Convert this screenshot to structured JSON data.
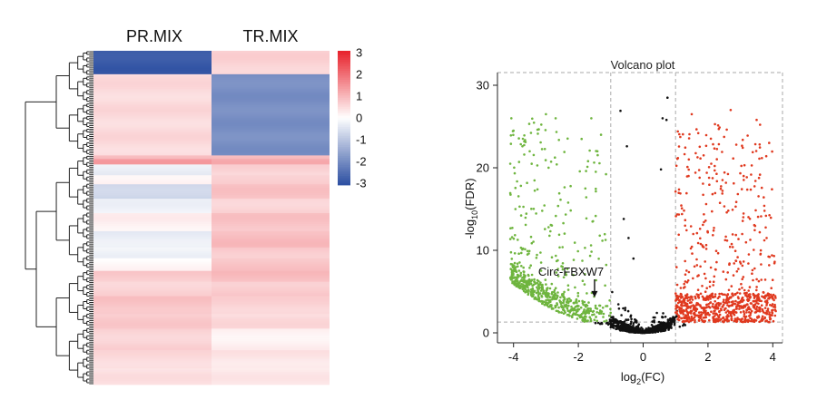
{
  "chart_data": [
    {
      "type": "heatmap",
      "columns": [
        "PR.MIX",
        "TR.MIX"
      ],
      "colorbar": {
        "min": -3,
        "max": 3,
        "ticks": [
          "3",
          "2",
          "1",
          "0",
          "-1",
          "-2",
          "-3"
        ],
        "colors": {
          "low": "#2b4ea1",
          "mid": "#ffffff",
          "high": "#e8202a"
        }
      },
      "row_blocks": [
        {
          "rows": 13,
          "values": [
            -2.8,
            0.6
          ]
        },
        {
          "rows": 45,
          "values": [
            0.5,
            -1.9
          ]
        },
        {
          "rows": 2,
          "values": [
            0.9,
            0.9
          ]
        },
        {
          "rows": 3,
          "values": [
            1.3,
            1.1
          ]
        },
        {
          "rows": 6,
          "values": [
            -0.3,
            0.6
          ]
        },
        {
          "rows": 5,
          "values": [
            0.2,
            0.7
          ]
        },
        {
          "rows": 8,
          "values": [
            -0.7,
            0.8
          ]
        },
        {
          "rows": 8,
          "values": [
            -0.2,
            0.6
          ]
        },
        {
          "rows": 10,
          "values": [
            0.2,
            0.8
          ]
        },
        {
          "rows": 9,
          "values": [
            -0.3,
            0.9
          ]
        },
        {
          "rows": 6,
          "values": [
            -0.2,
            0.7
          ]
        },
        {
          "rows": 7,
          "values": [
            0.1,
            0.8
          ]
        },
        {
          "rows": 6,
          "values": [
            0.7,
            0.9
          ]
        },
        {
          "rows": 8,
          "values": [
            0.6,
            0.7
          ]
        },
        {
          "rows": 10,
          "values": [
            0.8,
            0.6
          ]
        },
        {
          "rows": 8,
          "values": [
            0.7,
            0.5
          ]
        },
        {
          "rows": 12,
          "values": [
            0.6,
            0.2
          ]
        },
        {
          "rows": 10,
          "values": [
            0.5,
            0.35
          ]
        },
        {
          "rows": 9,
          "values": [
            0.4,
            0.3
          ]
        }
      ]
    },
    {
      "type": "scatter",
      "title": "Volcano plot",
      "xlabel": "log2(FC)",
      "ylabel": "-log10(FDR)",
      "xlim": [
        -4.3,
        4.3
      ],
      "ylim": [
        -0.5,
        31
      ],
      "xticks": [
        -4,
        -2,
        0,
        2,
        4
      ],
      "yticks": [
        0,
        10,
        20,
        30
      ],
      "thresholds": {
        "x": [
          -1,
          1
        ],
        "y": 1.3
      },
      "annotation": {
        "label": "Circ-FBXW7",
        "x": -1.5,
        "y": 4.3
      },
      "series": [
        {
          "color": "#6fb53f",
          "group": "down",
          "count": 700
        },
        {
          "color": "#e0391f",
          "group": "up",
          "count": 900
        },
        {
          "color": "#111111",
          "group": "ns",
          "count": 900
        }
      ],
      "notable_points": [
        [
          -3.0,
          26.5
        ],
        [
          -2.7,
          26.0
        ],
        [
          -4.0,
          24.5
        ],
        [
          -4.1,
          20.5
        ],
        [
          -3.5,
          22.0
        ],
        [
          -1.6,
          26.0
        ],
        [
          -1.9,
          23.5
        ],
        [
          -1.3,
          24.0
        ],
        [
          -1.7,
          20.8
        ],
        [
          -0.7,
          26.9
        ],
        [
          -0.5,
          22.6
        ],
        [
          -0.6,
          13.8
        ],
        [
          -0.45,
          11.5
        ],
        [
          -0.3,
          9.0
        ],
        [
          0.6,
          26.0
        ],
        [
          1.5,
          26.5
        ],
        [
          2.7,
          27.0
        ],
        [
          3.5,
          25.8
        ],
        [
          1.7,
          24.2
        ],
        [
          2.1,
          20.5
        ],
        [
          0.75,
          28.5
        ],
        [
          0.72,
          25.8
        ],
        [
          0.55,
          19.8
        ],
        [
          1.4,
          19.0
        ],
        [
          3.1,
          19.0
        ]
      ]
    }
  ]
}
